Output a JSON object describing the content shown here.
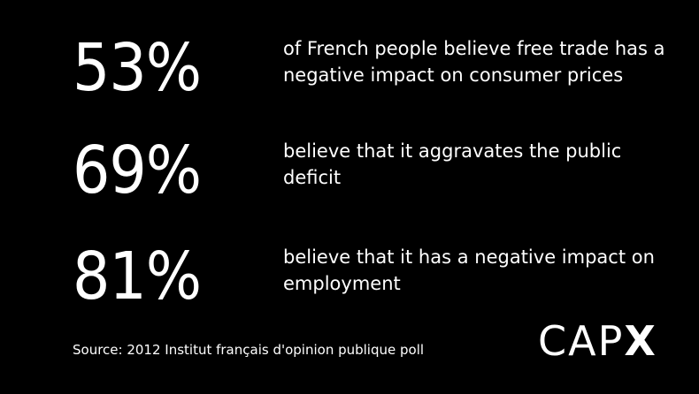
{
  "stats": [
    {
      "value": "53%",
      "text": "of French people believe free trade has a negative impact on consumer prices"
    },
    {
      "value": "69%",
      "text": "believe that it aggravates the public deficit"
    },
    {
      "value": "81%",
      "text": "believe that it has a negative impact on employment"
    }
  ],
  "source": "Source: 2012 Institut français d'opinion publique poll",
  "logo": {
    "light_part": "CAP",
    "bold_part": "X"
  },
  "colors": {
    "background": "#000000",
    "text": "#ffffff"
  }
}
